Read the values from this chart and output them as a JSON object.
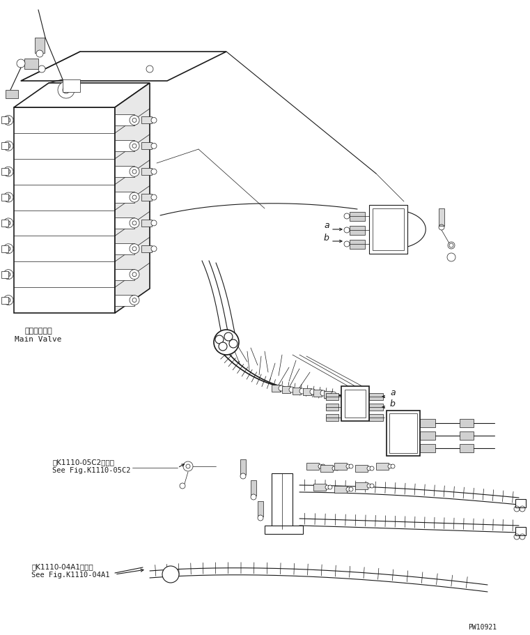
{
  "bg_color": "#ffffff",
  "line_color": "#1a1a1a",
  "fig_width": 7.61,
  "fig_height": 9.12,
  "dpi": 100,
  "text_main_valve_jp": "メインバルブ",
  "text_main_valve_en": "Main Valve",
  "text_ref1_jp": "第K1110-05C2図参照",
  "text_ref1_en": "See Fig.K1110-05C2",
  "text_ref2_jp": "第K1110-04A1図参照",
  "text_ref2_en": "See Fig.K1110-04A1",
  "text_pw": "PW10921",
  "label_a_top": "a",
  "label_b_top": "b",
  "label_a_mid": "a",
  "label_b_mid": "b"
}
